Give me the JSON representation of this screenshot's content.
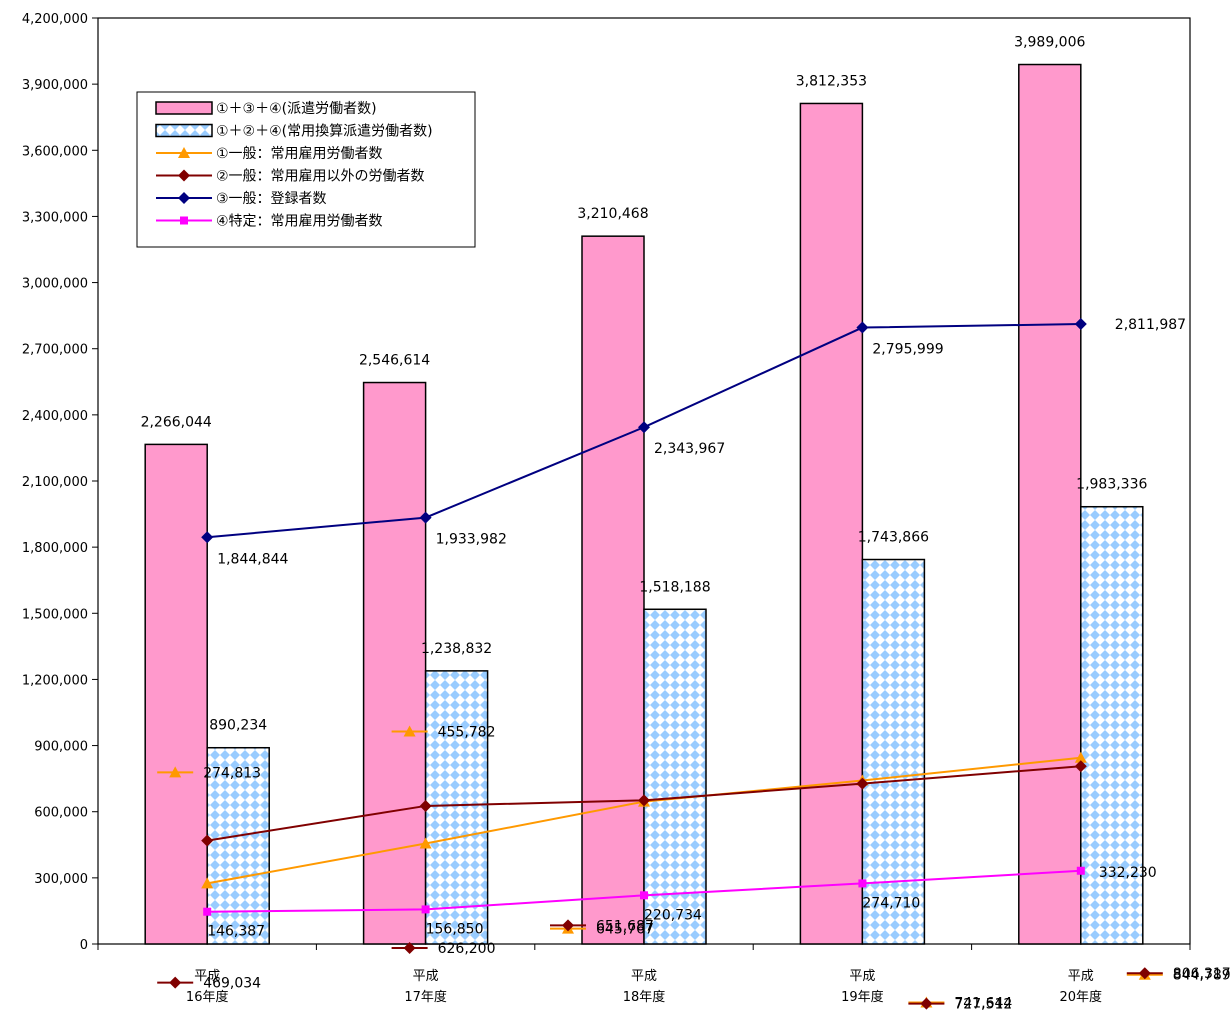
{
  "chart_data": {
    "type": "bar",
    "title": "",
    "xlabel": "",
    "ylabel": "",
    "ylim": [
      0,
      4200000
    ],
    "yticks": [
      0,
      300000,
      600000,
      900000,
      1200000,
      1500000,
      1800000,
      2100000,
      2400000,
      2700000,
      3000000,
      3300000,
      3600000,
      3900000,
      4200000
    ],
    "ytick_labels": [
      "0",
      "300,000",
      "600,000",
      "900,000",
      "1,200,000",
      "1,500,000",
      "1,800,000",
      "2,100,000",
      "2,400,000",
      "2,700,000",
      "3,000,000",
      "3,300,000",
      "3,600,000",
      "3,900,000",
      "4,200,000"
    ],
    "categories": [
      {
        "line1": "平成",
        "line2": "16年度"
      },
      {
        "line1": "平成",
        "line2": "17年度"
      },
      {
        "line1": "平成",
        "line2": "18年度"
      },
      {
        "line1": "平成",
        "line2": "19年度"
      },
      {
        "line1": "平成",
        "line2": "20年度"
      }
    ],
    "grid": false,
    "legend_position": "top-left",
    "bar_series": [
      {
        "name": "①＋③＋④(派遣労働者数)",
        "color": "#ff99cc",
        "pattern": "solid",
        "values": [
          2266044,
          2546614,
          3210468,
          3812353,
          3989006
        ],
        "labels": [
          "2,266,044",
          "2,546,614",
          "3,210,468",
          "3,812,353",
          "3,989,006"
        ]
      },
      {
        "name": "①＋②＋④(常用換算派遣労働者数)",
        "color": "#99ccff",
        "pattern": "diamond",
        "values": [
          890234,
          1238832,
          1518188,
          1743866,
          1983336
        ],
        "labels": [
          "890,234",
          "1,238,832",
          "1,518,188",
          "1,743,866",
          "1,983,336"
        ]
      }
    ],
    "line_series": [
      {
        "name": "①一般：常用雇用労働者数",
        "color": "#ff9900",
        "marker": "triangle",
        "values": [
          274813,
          455782,
          645767,
          741644,
          844789
        ],
        "labels": [
          "274,813",
          "455,782",
          "645,767",
          "741,644",
          "844,789"
        ]
      },
      {
        "name": "②一般：常用雇用以外の労働者数",
        "color": "#800000",
        "marker": "diamond",
        "values": [
          469034,
          626200,
          651687,
          727512,
          806317
        ],
        "labels": [
          "469,034",
          "626,200",
          "651,687",
          "727,512",
          "806,317"
        ]
      },
      {
        "name": "③一般：登録者数",
        "color": "#000080",
        "marker": "diamond",
        "values": [
          1844844,
          1933982,
          2343967,
          2795999,
          2811987
        ],
        "labels": [
          "1,844,844",
          "1,933,982",
          "2,343,967",
          "2,795,999",
          "2,811,987"
        ]
      },
      {
        "name": "④特定：常用雇用労働者数",
        "color": "#ff00ff",
        "marker": "square",
        "values": [
          146387,
          156850,
          220734,
          274710,
          332230
        ],
        "labels": [
          "146,387",
          "156,850",
          "220,734",
          "274,710",
          "332,230"
        ]
      }
    ]
  }
}
